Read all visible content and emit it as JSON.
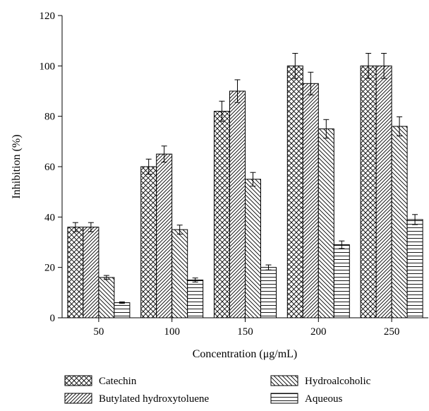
{
  "chart_data": {
    "type": "bar",
    "categories": [
      "50",
      "100",
      "150",
      "200",
      "250"
    ],
    "series": [
      {
        "name": "Catechin",
        "pattern": "crosshatch",
        "values": [
          36,
          60,
          82,
          100,
          100
        ],
        "errors": [
          1.8,
          3,
          4,
          5,
          5
        ]
      },
      {
        "name": "Butylated hydroxytoluene",
        "pattern": "forward-diagonal",
        "values": [
          36,
          65,
          90,
          93,
          100
        ],
        "errors": [
          1.8,
          3.2,
          4.5,
          4.5,
          5
        ]
      },
      {
        "name": "Hydroalcoholic",
        "pattern": "backward-diagonal",
        "values": [
          16,
          35,
          55,
          75,
          76
        ],
        "errors": [
          0.8,
          1.8,
          2.7,
          3.7,
          3.8
        ]
      },
      {
        "name": "Aqueous",
        "pattern": "horizontal",
        "values": [
          6,
          15,
          20,
          29,
          39
        ],
        "errors": [
          0.3,
          0.8,
          1,
          1.5,
          2
        ]
      }
    ],
    "xlabel": "Concentration (μg/mL)",
    "ylabel": "Inhibition (%)",
    "ylim": [
      0,
      120
    ],
    "yticks": [
      0,
      20,
      40,
      60,
      80,
      100,
      120
    ],
    "grid": false,
    "legend_position": "bottom"
  }
}
